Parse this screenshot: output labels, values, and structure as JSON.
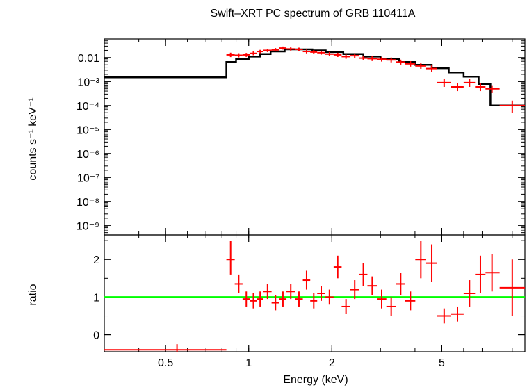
{
  "chart_data": {
    "type": "line",
    "title": "Swift–XRT PC spectrum of GRB 110411A",
    "xlabel": "Energy (keV)",
    "xscale": "log",
    "xlim": [
      0.3,
      10
    ],
    "x_ticks": [
      {
        "value": 0.5,
        "label": "0.5"
      },
      {
        "value": 1,
        "label": "1"
      },
      {
        "value": 2,
        "label": "2"
      },
      {
        "value": 5,
        "label": "5"
      }
    ],
    "colors": {
      "data": "#ff0000",
      "model": "#000000",
      "unity": "#00ff00",
      "axes": "#000000"
    },
    "panels": [
      {
        "name": "spectrum",
        "ylabel": "counts s⁻¹ keV⁻¹",
        "yscale": "log",
        "ylim": [
          4e-10,
          0.06
        ],
        "y_ticks": [
          {
            "value": 0.01,
            "label": "0.01"
          },
          {
            "value": 0.001,
            "label": "10⁻³"
          },
          {
            "value": 0.0001,
            "label": "10⁻⁴"
          },
          {
            "value": 1e-05,
            "label": "10⁻⁵"
          },
          {
            "value": 1e-06,
            "label": "10⁻⁶"
          },
          {
            "value": 1e-07,
            "label": "10⁻⁷"
          },
          {
            "value": 1e-08,
            "label": "10⁻⁸"
          },
          {
            "value": 1e-09,
            "label": "10⁻⁹"
          }
        ],
        "model_steps": [
          [
            0.3,
            0.0015
          ],
          [
            0.83,
            0.0065
          ],
          [
            0.9,
            0.0085
          ],
          [
            1.0,
            0.011
          ],
          [
            1.1,
            0.014
          ],
          [
            1.2,
            0.018
          ],
          [
            1.35,
            0.022
          ],
          [
            1.5,
            0.022
          ],
          [
            1.7,
            0.02
          ],
          [
            1.9,
            0.017
          ],
          [
            2.2,
            0.014
          ],
          [
            2.6,
            0.011
          ],
          [
            3.0,
            0.0085
          ],
          [
            3.5,
            0.0065
          ],
          [
            4.0,
            0.005
          ],
          [
            4.6,
            0.0036
          ],
          [
            5.3,
            0.0024
          ],
          [
            6.0,
            0.0016
          ],
          [
            6.8,
            0.0008
          ],
          [
            7.5,
            0.0001
          ],
          [
            10.0,
            0.0001
          ]
        ],
        "points": [
          {
            "x": 0.86,
            "xlo": 0.83,
            "xhi": 0.89,
            "y": 0.013,
            "ylo": 0.0105,
            "yhi": 0.016
          },
          {
            "x": 0.92,
            "xlo": 0.89,
            "xhi": 0.95,
            "y": 0.0125,
            "ylo": 0.0102,
            "yhi": 0.0152
          },
          {
            "x": 0.98,
            "xlo": 0.95,
            "xhi": 1.01,
            "y": 0.013,
            "ylo": 0.0107,
            "yhi": 0.0156
          },
          {
            "x": 1.04,
            "xlo": 1.01,
            "xhi": 1.07,
            "y": 0.015,
            "ylo": 0.0125,
            "yhi": 0.018
          },
          {
            "x": 1.1,
            "xlo": 1.07,
            "xhi": 1.13,
            "y": 0.018,
            "ylo": 0.0152,
            "yhi": 0.021
          },
          {
            "x": 1.17,
            "xlo": 1.13,
            "xhi": 1.21,
            "y": 0.02,
            "ylo": 0.017,
            "yhi": 0.0235
          },
          {
            "x": 1.25,
            "xlo": 1.21,
            "xhi": 1.29,
            "y": 0.021,
            "ylo": 0.018,
            "yhi": 0.025
          },
          {
            "x": 1.33,
            "xlo": 1.29,
            "xhi": 1.37,
            "y": 0.025,
            "ylo": 0.0215,
            "yhi": 0.029
          },
          {
            "x": 1.42,
            "xlo": 1.37,
            "xhi": 1.47,
            "y": 0.023,
            "ylo": 0.0195,
            "yhi": 0.027
          },
          {
            "x": 1.52,
            "xlo": 1.47,
            "xhi": 1.57,
            "y": 0.022,
            "ylo": 0.0185,
            "yhi": 0.026
          },
          {
            "x": 1.62,
            "xlo": 1.57,
            "xhi": 1.67,
            "y": 0.018,
            "ylo": 0.015,
            "yhi": 0.0215
          },
          {
            "x": 1.72,
            "xlo": 1.67,
            "xhi": 1.77,
            "y": 0.017,
            "ylo": 0.0142,
            "yhi": 0.0205
          },
          {
            "x": 1.83,
            "xlo": 1.77,
            "xhi": 1.89,
            "y": 0.016,
            "ylo": 0.0133,
            "yhi": 0.0193
          },
          {
            "x": 1.96,
            "xlo": 1.89,
            "xhi": 2.03,
            "y": 0.014,
            "ylo": 0.0115,
            "yhi": 0.017
          },
          {
            "x": 2.1,
            "xlo": 2.03,
            "xhi": 2.17,
            "y": 0.013,
            "ylo": 0.0106,
            "yhi": 0.0158
          },
          {
            "x": 2.25,
            "xlo": 2.17,
            "xhi": 2.33,
            "y": 0.011,
            "ylo": 0.0089,
            "yhi": 0.0135
          },
          {
            "x": 2.42,
            "xlo": 2.33,
            "xhi": 2.51,
            "y": 0.012,
            "ylo": 0.0098,
            "yhi": 0.0146
          },
          {
            "x": 2.6,
            "xlo": 2.51,
            "xhi": 2.69,
            "y": 0.0095,
            "ylo": 0.0077,
            "yhi": 0.0117
          },
          {
            "x": 2.8,
            "xlo": 2.69,
            "xhi": 2.91,
            "y": 0.009,
            "ylo": 0.0072,
            "yhi": 0.0112
          },
          {
            "x": 3.03,
            "xlo": 2.91,
            "xhi": 3.15,
            "y": 0.0085,
            "ylo": 0.0068,
            "yhi": 0.0106
          },
          {
            "x": 3.28,
            "xlo": 3.15,
            "xhi": 3.41,
            "y": 0.008,
            "ylo": 0.0063,
            "yhi": 0.0101
          },
          {
            "x": 3.55,
            "xlo": 3.41,
            "xhi": 3.69,
            "y": 0.0065,
            "ylo": 0.0051,
            "yhi": 0.0082
          },
          {
            "x": 3.85,
            "xlo": 3.69,
            "xhi": 4.01,
            "y": 0.0055,
            "ylo": 0.0042,
            "yhi": 0.0071
          },
          {
            "x": 4.2,
            "xlo": 4.01,
            "xhi": 4.39,
            "y": 0.0045,
            "ylo": 0.0034,
            "yhi": 0.006
          },
          {
            "x": 4.6,
            "xlo": 4.39,
            "xhi": 4.81,
            "y": 0.0035,
            "ylo": 0.0026,
            "yhi": 0.0047
          },
          {
            "x": 5.1,
            "xlo": 4.81,
            "xhi": 5.4,
            "y": 0.0009,
            "ylo": 0.0006,
            "yhi": 0.0013
          },
          {
            "x": 5.7,
            "xlo": 5.4,
            "xhi": 6.0,
            "y": 0.0006,
            "ylo": 0.0004,
            "yhi": 0.00085
          },
          {
            "x": 6.3,
            "xlo": 6.0,
            "xhi": 6.6,
            "y": 0.0009,
            "ylo": 0.0006,
            "yhi": 0.0013
          },
          {
            "x": 6.9,
            "xlo": 6.6,
            "xhi": 7.2,
            "y": 0.0006,
            "ylo": 0.0004,
            "yhi": 0.00085
          },
          {
            "x": 7.6,
            "xlo": 7.2,
            "xhi": 8.1,
            "y": 0.0005,
            "ylo": 0.00033,
            "yhi": 0.0007
          },
          {
            "x": 9.0,
            "xlo": 8.1,
            "xhi": 10.0,
            "y": 0.0001,
            "ylo": 5e-05,
            "yhi": 0.00016
          }
        ]
      },
      {
        "name": "ratio",
        "ylabel": "ratio",
        "yscale": "linear",
        "ylim": [
          -0.45,
          2.65
        ],
        "y_ticks": [
          {
            "value": 0,
            "label": "0"
          },
          {
            "value": 1,
            "label": "1"
          },
          {
            "value": 2,
            "label": "2"
          }
        ],
        "unity_line": 1,
        "points": [
          {
            "x": 0.55,
            "xlo": 0.3,
            "xhi": 0.83,
            "y": -0.4,
            "ylo": -0.55,
            "yhi": -0.25
          },
          {
            "x": 0.86,
            "xlo": 0.83,
            "xhi": 0.89,
            "y": 2.0,
            "ylo": 1.6,
            "yhi": 2.5
          },
          {
            "x": 0.92,
            "xlo": 0.89,
            "xhi": 0.95,
            "y": 1.35,
            "ylo": 1.1,
            "yhi": 1.6
          },
          {
            "x": 0.98,
            "xlo": 0.95,
            "xhi": 1.01,
            "y": 0.95,
            "ylo": 0.75,
            "yhi": 1.15
          },
          {
            "x": 1.04,
            "xlo": 1.01,
            "xhi": 1.07,
            "y": 0.9,
            "ylo": 0.7,
            "yhi": 1.1
          },
          {
            "x": 1.1,
            "xlo": 1.07,
            "xhi": 1.13,
            "y": 0.95,
            "ylo": 0.75,
            "yhi": 1.15
          },
          {
            "x": 1.17,
            "xlo": 1.13,
            "xhi": 1.21,
            "y": 1.15,
            "ylo": 0.95,
            "yhi": 1.35
          },
          {
            "x": 1.25,
            "xlo": 1.21,
            "xhi": 1.29,
            "y": 0.85,
            "ylo": 0.65,
            "yhi": 1.05
          },
          {
            "x": 1.33,
            "xlo": 1.29,
            "xhi": 1.37,
            "y": 0.95,
            "ylo": 0.75,
            "yhi": 1.15
          },
          {
            "x": 1.42,
            "xlo": 1.37,
            "xhi": 1.47,
            "y": 1.15,
            "ylo": 0.95,
            "yhi": 1.35
          },
          {
            "x": 1.52,
            "xlo": 1.47,
            "xhi": 1.57,
            "y": 0.95,
            "ylo": 0.75,
            "yhi": 1.15
          },
          {
            "x": 1.62,
            "xlo": 1.57,
            "xhi": 1.67,
            "y": 1.45,
            "ylo": 1.2,
            "yhi": 1.7
          },
          {
            "x": 1.72,
            "xlo": 1.67,
            "xhi": 1.77,
            "y": 0.9,
            "ylo": 0.7,
            "yhi": 1.1
          },
          {
            "x": 1.83,
            "xlo": 1.77,
            "xhi": 1.89,
            "y": 1.1,
            "ylo": 0.9,
            "yhi": 1.3
          },
          {
            "x": 1.96,
            "xlo": 1.89,
            "xhi": 2.03,
            "y": 1.0,
            "ylo": 0.8,
            "yhi": 1.2
          },
          {
            "x": 2.1,
            "xlo": 2.03,
            "xhi": 2.17,
            "y": 1.8,
            "ylo": 1.5,
            "yhi": 2.1
          },
          {
            "x": 2.25,
            "xlo": 2.17,
            "xhi": 2.33,
            "y": 0.75,
            "ylo": 0.55,
            "yhi": 0.95
          },
          {
            "x": 2.42,
            "xlo": 2.33,
            "xhi": 2.51,
            "y": 1.2,
            "ylo": 0.95,
            "yhi": 1.45
          },
          {
            "x": 2.6,
            "xlo": 2.51,
            "xhi": 2.69,
            "y": 1.6,
            "ylo": 1.3,
            "yhi": 1.9
          },
          {
            "x": 2.8,
            "xlo": 2.69,
            "xhi": 2.91,
            "y": 1.3,
            "ylo": 1.05,
            "yhi": 1.55
          },
          {
            "x": 3.03,
            "xlo": 2.91,
            "xhi": 3.15,
            "y": 0.95,
            "ylo": 0.7,
            "yhi": 1.2
          },
          {
            "x": 3.28,
            "xlo": 3.15,
            "xhi": 3.41,
            "y": 0.75,
            "ylo": 0.5,
            "yhi": 1.0
          },
          {
            "x": 3.55,
            "xlo": 3.41,
            "xhi": 3.69,
            "y": 1.35,
            "ylo": 1.05,
            "yhi": 1.65
          },
          {
            "x": 3.85,
            "xlo": 3.69,
            "xhi": 4.01,
            "y": 0.9,
            "ylo": 0.65,
            "yhi": 1.15
          },
          {
            "x": 4.2,
            "xlo": 4.01,
            "xhi": 4.39,
            "y": 2.0,
            "ylo": 1.5,
            "yhi": 2.5
          },
          {
            "x": 4.6,
            "xlo": 4.39,
            "xhi": 4.81,
            "y": 1.9,
            "ylo": 1.4,
            "yhi": 2.4
          },
          {
            "x": 5.1,
            "xlo": 4.81,
            "xhi": 5.4,
            "y": 0.5,
            "ylo": 0.3,
            "yhi": 0.7
          },
          {
            "x": 5.7,
            "xlo": 5.4,
            "xhi": 6.0,
            "y": 0.55,
            "ylo": 0.35,
            "yhi": 0.75
          },
          {
            "x": 6.3,
            "xlo": 6.0,
            "xhi": 6.6,
            "y": 1.1,
            "ylo": 0.75,
            "yhi": 1.45
          },
          {
            "x": 6.9,
            "xlo": 6.6,
            "xhi": 7.2,
            "y": 1.6,
            "ylo": 1.1,
            "yhi": 2.1
          },
          {
            "x": 7.6,
            "xlo": 7.2,
            "xhi": 8.1,
            "y": 1.65,
            "ylo": 1.15,
            "yhi": 2.15
          },
          {
            "x": 9.0,
            "xlo": 8.1,
            "xhi": 10.0,
            "y": 1.25,
            "ylo": 0.5,
            "yhi": 2.0
          }
        ]
      }
    ]
  }
}
